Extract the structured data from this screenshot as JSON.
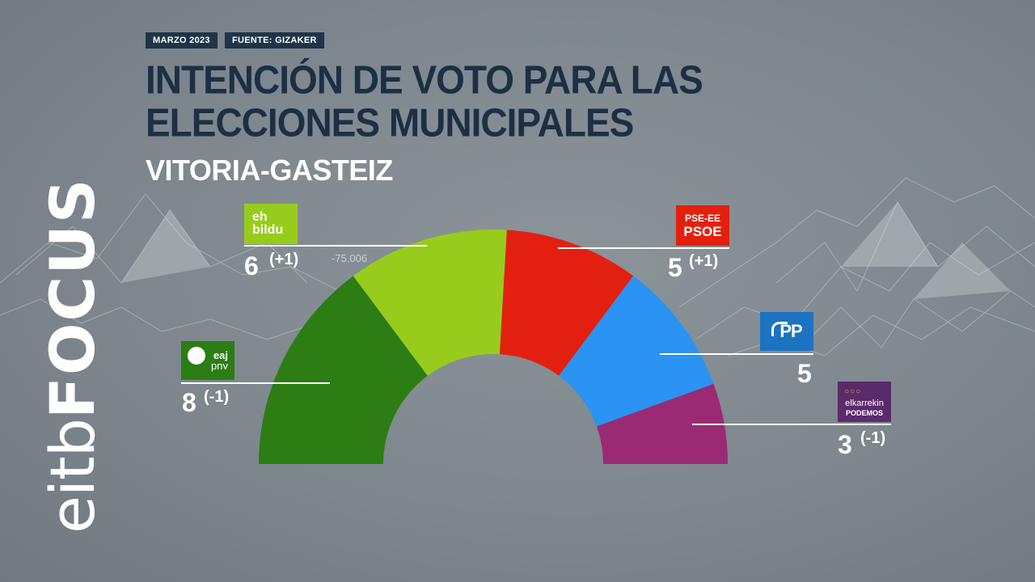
{
  "header": {
    "date_tag": "MARZO 2023",
    "source_tag": "FUENTE: GIZAKER",
    "title": "INTENCIÓN DE VOTO PARA LAS ELECCIONES MUNICIPALES",
    "subtitle": "VITORIA-GASTEIZ"
  },
  "brand": {
    "part1": "eitb",
    "part2": "FOCUS"
  },
  "annotation": "-75.006",
  "colors": {
    "background": "#7d878d",
    "title": "#1d2f44",
    "tag_bg": "#203449",
    "eaj_pnv": "#2b7d14",
    "eh_bildu": "#97cc1c",
    "pse_ee": "#e3200f",
    "pp": "#2a93f3",
    "podemos": "#9a2a74"
  },
  "logos": {
    "eaj_pnv": {
      "line1": "eaj",
      "line2": "pnv",
      "icon": "eaj-pnv-logo-icon"
    },
    "eh_bildu": {
      "line1": "eh",
      "line2": "bildu"
    },
    "pse_ee": {
      "line1": "PSE-EE",
      "line2": "PSOE"
    },
    "pp": {
      "line1": "PP",
      "icon": "pp-gull-icon"
    },
    "podemos": {
      "line1": "elkarrekin",
      "line2": "PODEMOS",
      "icon": "podemos-circles-icon"
    }
  },
  "chart_data": {
    "type": "hemicycle",
    "title": "INTENCIÓN DE VOTO PARA LAS ELECCIONES MUNICIPALES",
    "subtitle": "VITORIA-GASTEIZ",
    "total_seats": 27,
    "series": [
      {
        "name": "EAJ-PNV",
        "seats": 8,
        "change": "(-1)",
        "color": "#2b7d14"
      },
      {
        "name": "EH Bildu",
        "seats": 6,
        "change": "(+1)",
        "color": "#97cc1c"
      },
      {
        "name": "PSE-EE (PSOE)",
        "seats": 5,
        "change": "(+1)",
        "color": "#e3200f"
      },
      {
        "name": "PP",
        "seats": 5,
        "change": "",
        "color": "#2a93f3"
      },
      {
        "name": "Elkarrekin Podemos",
        "seats": 3,
        "change": "(-1)",
        "color": "#9a2a74"
      }
    ]
  }
}
